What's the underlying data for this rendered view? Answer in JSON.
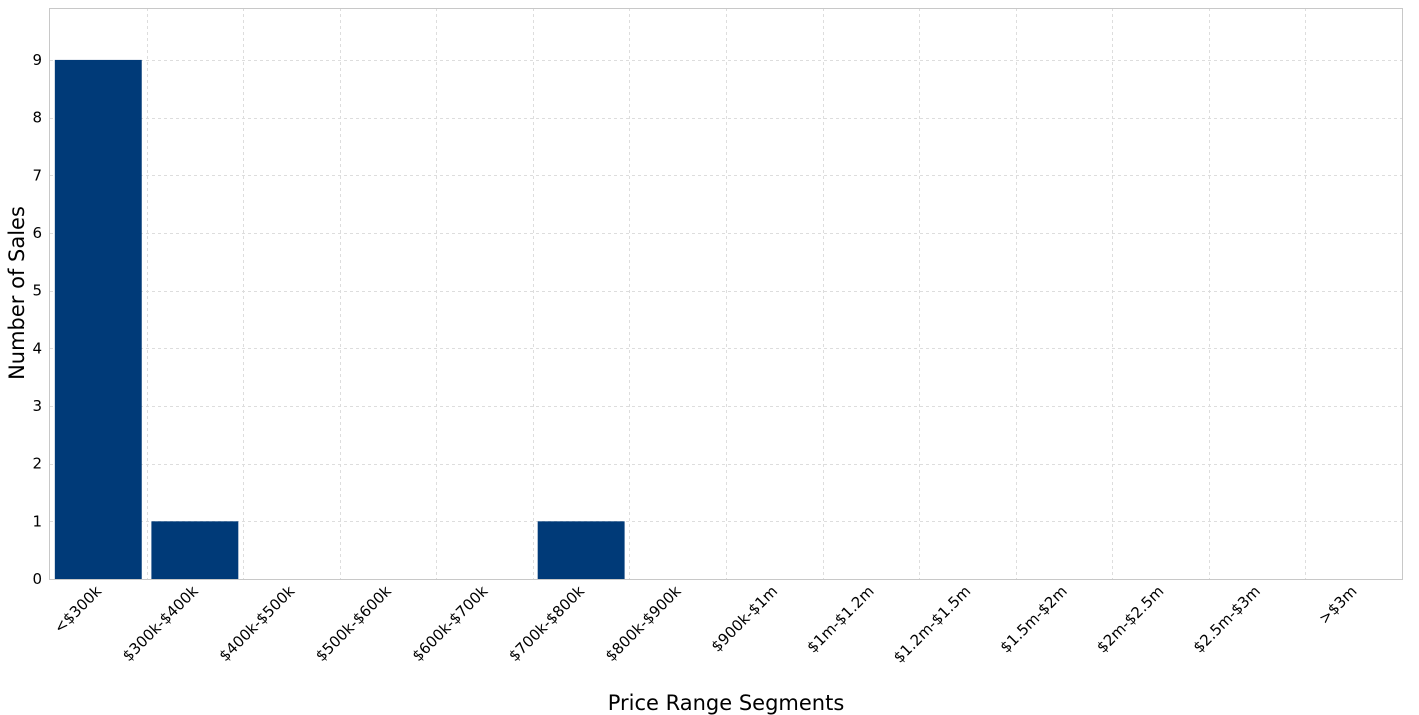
{
  "chart_data": {
    "type": "bar",
    "title": "",
    "xlabel": "Price Range Segments",
    "ylabel": "Number of Sales",
    "categories": [
      "<$300k",
      "$300k-$400k",
      "$400k-$500k",
      "$500k-$600k",
      "$600k-$700k",
      "$700k-$800k",
      "$800k-$900k",
      "$900k-$1m",
      "$1m-$1.2m",
      "$1.2m-$1.5m",
      "$1.5m-$2m",
      "$2m-$2.5m",
      "$2.5m-$3m",
      ">$3m"
    ],
    "values": [
      9,
      1,
      0,
      0,
      0,
      1,
      0,
      0,
      0,
      0,
      0,
      0,
      0,
      0
    ],
    "ylim": [
      0,
      9.9
    ],
    "yticks": [
      0,
      1,
      2,
      3,
      4,
      5,
      6,
      7,
      8,
      9
    ],
    "grid": true,
    "bar_color": "#003a78"
  }
}
